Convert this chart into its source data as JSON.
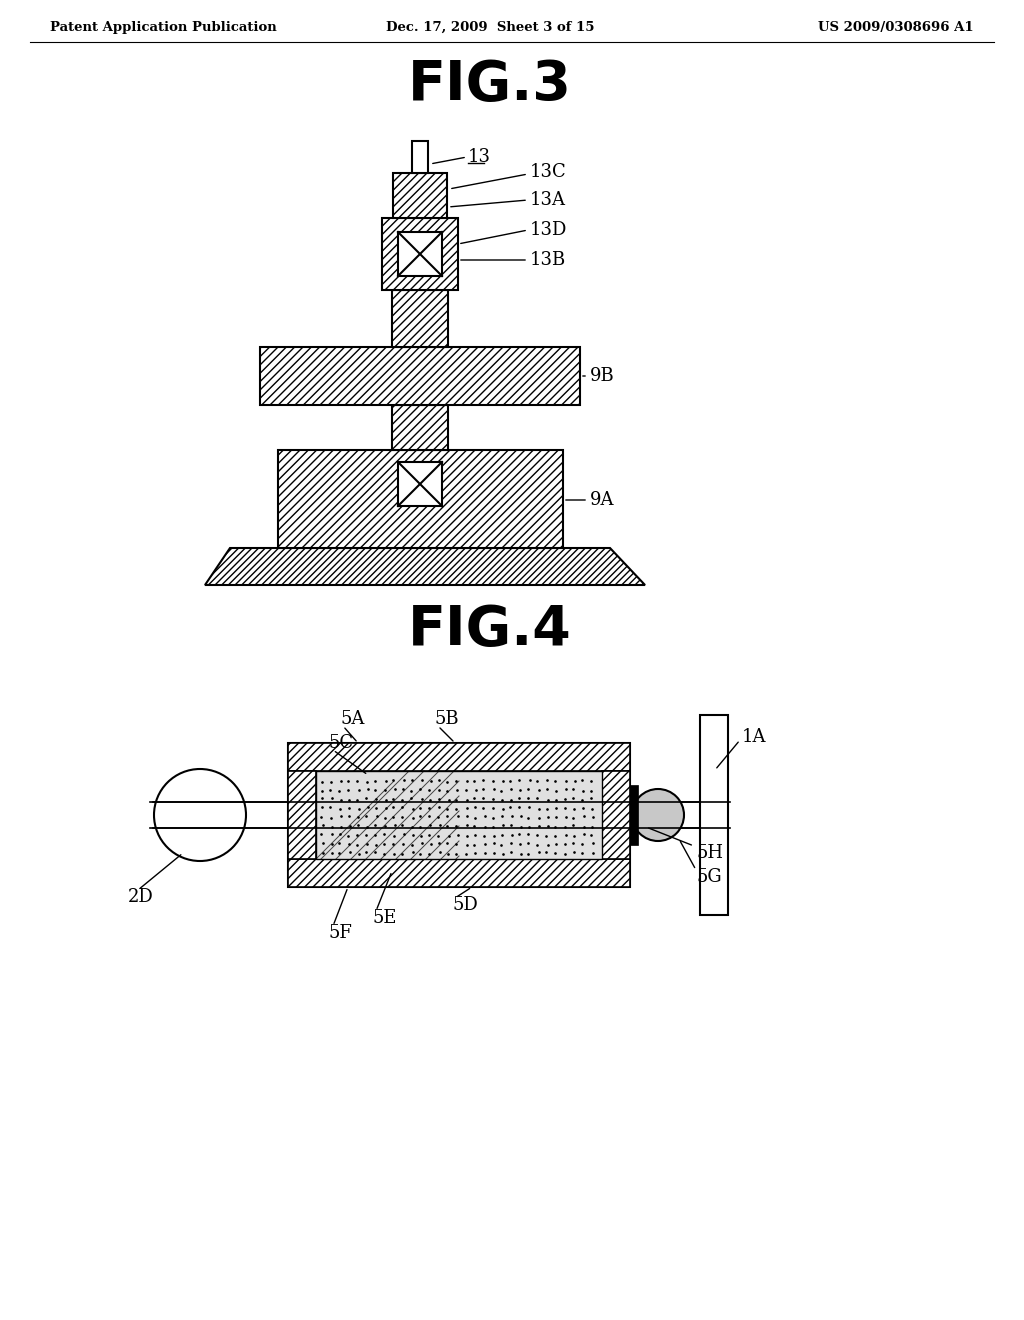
{
  "header_left": "Patent Application Publication",
  "header_mid": "Dec. 17, 2009  Sheet 3 of 15",
  "header_right": "US 2009/0308696 A1",
  "fig3_title": "FIG.3",
  "fig4_title": "FIG.4",
  "bg_color": "#ffffff",
  "line_color": "#000000"
}
